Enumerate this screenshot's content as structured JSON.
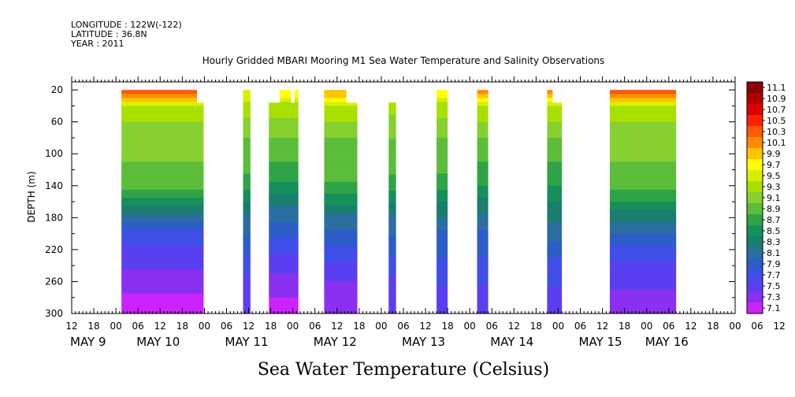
{
  "meta": {
    "longitude": "LONGITUDE : 122W(-122)",
    "latitude": "LATITUDE : 36.8N",
    "year": "YEAR : 2011"
  },
  "chart_data": {
    "type": "heatmap",
    "title": "Hourly Gridded MBARI Mooring M1 Sea Water Temperature and Salinity Observations",
    "xlabel": "Sea Water Temperature (Celsius)",
    "ylabel": "DEPTH (m)",
    "x_unit": "hours since 2011-05-09 12:00",
    "xlim": [
      0,
      180
    ],
    "ylim": [
      300,
      10
    ],
    "y_reversed": true,
    "y_ticks": [
      20,
      60,
      100,
      140,
      180,
      220,
      260,
      300
    ],
    "hour_tick_labels": [
      "12",
      "18",
      "00",
      "06",
      "12",
      "18",
      "00",
      "06",
      "12",
      "18",
      "00",
      "06",
      "12",
      "18",
      "00",
      "06",
      "12",
      "18",
      "00",
      "06",
      "12",
      "18",
      "00",
      "06",
      "12",
      "18",
      "00",
      "06",
      "12",
      "18",
      "00",
      "06",
      "12"
    ],
    "day_labels": [
      {
        "label": "MAY   9",
        "x": 0
      },
      {
        "label": "MAY 10",
        "x": 18
      },
      {
        "label": "MAY 11",
        "x": 42
      },
      {
        "label": "MAY 12",
        "x": 66
      },
      {
        "label": "MAY 13",
        "x": 90
      },
      {
        "label": "MAY 14",
        "x": 114
      },
      {
        "label": "MAY 15",
        "x": 138
      },
      {
        "label": "MAY 16",
        "x": 156
      }
    ],
    "colorbar": {
      "min": 7.1,
      "max": 11.1,
      "labels": [
        "11.1",
        "10.9",
        "10.7",
        "10.5",
        "10.3",
        "10.1",
        "9.9",
        "9.7",
        "9.5",
        "9.3",
        "9.1",
        "8.9",
        "8.7",
        "8.5",
        "8.3",
        "8.1",
        "7.9",
        "7.7",
        "7.5",
        "7.3",
        "7.1"
      ],
      "colors": [
        "#8b0000",
        "#b00000",
        "#dd0000",
        "#ff2000",
        "#ff5a00",
        "#ff8c00",
        "#ffc400",
        "#ffff00",
        "#d8f000",
        "#a8e000",
        "#86d030",
        "#5cbd3a",
        "#2fa346",
        "#16905a",
        "#1a7e6e",
        "#2a6fa0",
        "#2c5cc8",
        "#3f4fe8",
        "#5a3ff0",
        "#8a30f0",
        "#cc22ff"
      ]
    },
    "segments": [
      {
        "x0": 13.5,
        "x1": 35.8,
        "top": 20,
        "bottom": 300,
        "profile": [
          [
            20,
            10.3
          ],
          [
            30,
            9.9
          ],
          [
            40,
            9.4
          ],
          [
            70,
            9.1
          ],
          [
            110,
            9.0
          ],
          [
            150,
            8.8
          ],
          [
            170,
            8.3
          ],
          [
            200,
            7.8
          ],
          [
            240,
            7.5
          ],
          [
            270,
            7.3
          ],
          [
            300,
            7.2
          ]
        ]
      },
      {
        "x0": 46.5,
        "x1": 48.5,
        "top": 20,
        "bottom": 300,
        "profile": [
          [
            20,
            9.6
          ],
          [
            40,
            9.3
          ],
          [
            80,
            9.0
          ],
          [
            130,
            8.8
          ],
          [
            170,
            8.3
          ],
          [
            220,
            7.9
          ],
          [
            260,
            7.6
          ],
          [
            300,
            7.5
          ]
        ]
      },
      {
        "x0": 53.5,
        "x1": 61.5,
        "top": 20,
        "bottom": 300,
        "profile": [
          [
            20,
            9.8
          ],
          [
            40,
            9.3
          ],
          [
            80,
            9.0
          ],
          [
            130,
            8.7
          ],
          [
            170,
            8.2
          ],
          [
            220,
            7.7
          ],
          [
            260,
            7.4
          ],
          [
            300,
            7.2
          ]
        ]
      },
      {
        "x0": 68.5,
        "x1": 77.5,
        "top": 20,
        "bottom": 300,
        "profile": [
          [
            20,
            10.0
          ],
          [
            40,
            9.4
          ],
          [
            80,
            9.0
          ],
          [
            140,
            8.8
          ],
          [
            180,
            8.2
          ],
          [
            230,
            7.7
          ],
          [
            270,
            7.4
          ],
          [
            300,
            7.3
          ]
        ]
      },
      {
        "x0": 86.0,
        "x1": 88.0,
        "top": 36,
        "bottom": 300,
        "profile": [
          [
            36,
            9.3
          ],
          [
            80,
            9.0
          ],
          [
            130,
            8.8
          ],
          [
            170,
            8.3
          ],
          [
            220,
            7.9
          ],
          [
            260,
            7.6
          ],
          [
            300,
            7.5
          ]
        ]
      },
      {
        "x0": 99.0,
        "x1": 102.0,
        "top": 20,
        "bottom": 300,
        "profile": [
          [
            20,
            9.8
          ],
          [
            40,
            9.3
          ],
          [
            80,
            9.0
          ],
          [
            130,
            8.8
          ],
          [
            200,
            8.0
          ],
          [
            260,
            7.7
          ],
          [
            300,
            7.5
          ]
        ]
      },
      {
        "x0": 110.0,
        "x1": 113.0,
        "top": 20,
        "bottom": 300,
        "profile": [
          [
            20,
            10.1
          ],
          [
            40,
            9.4
          ],
          [
            80,
            9.0
          ],
          [
            130,
            8.7
          ],
          [
            200,
            8.0
          ],
          [
            260,
            7.7
          ],
          [
            300,
            7.5
          ]
        ]
      },
      {
        "x0": 129.0,
        "x1": 133.0,
        "top": 20,
        "bottom": 300,
        "profile": [
          [
            20,
            10.1
          ],
          [
            40,
            9.4
          ],
          [
            80,
            9.0
          ],
          [
            130,
            8.7
          ],
          [
            190,
            8.2
          ],
          [
            240,
            7.8
          ],
          [
            300,
            7.5
          ]
        ]
      },
      {
        "x0": 146.0,
        "x1": 164.0,
        "top": 20,
        "bottom": 300,
        "profile": [
          [
            20,
            10.4
          ],
          [
            30,
            9.9
          ],
          [
            40,
            9.4
          ],
          [
            70,
            9.1
          ],
          [
            110,
            9.0
          ],
          [
            150,
            8.8
          ],
          [
            180,
            8.3
          ],
          [
            220,
            7.8
          ],
          [
            260,
            7.5
          ],
          [
            300,
            7.4
          ]
        ]
      }
    ],
    "gaps": [
      {
        "x0": 13.5,
        "x1": 35.8,
        "cuts": [
          [
            34.0,
            35.8,
            20,
            36
          ]
        ]
      },
      {
        "x0": 53.5,
        "x1": 61.5,
        "cuts": [
          [
            53.5,
            56.5,
            20,
            36
          ],
          [
            59.5,
            60.5,
            20,
            36
          ]
        ]
      },
      {
        "x0": 68.5,
        "x1": 77.5,
        "cuts": [
          [
            74.5,
            77.5,
            20,
            36
          ]
        ]
      },
      {
        "x0": 129.0,
        "x1": 133.0,
        "cuts": [
          [
            130.5,
            133.0,
            20,
            36
          ]
        ]
      }
    ]
  }
}
